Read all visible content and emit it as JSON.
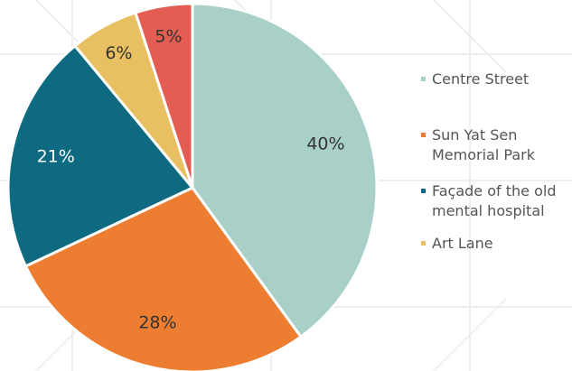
{
  "chart_data": {
    "type": "pie",
    "categories": [
      "Centre Street",
      "Sun Yat Sen Memorial Park",
      "Façade of the old mental hospital",
      "Art Lane",
      null
    ],
    "values": [
      40,
      28,
      21,
      6,
      5
    ],
    "value_labels": [
      "40%",
      "28%",
      "21%",
      "6%",
      "5%"
    ],
    "colors": [
      "#a9d0c8",
      "#ed7d31",
      "#0e6a80",
      "#e8c062",
      "#e35d53"
    ],
    "legend": "right"
  }
}
